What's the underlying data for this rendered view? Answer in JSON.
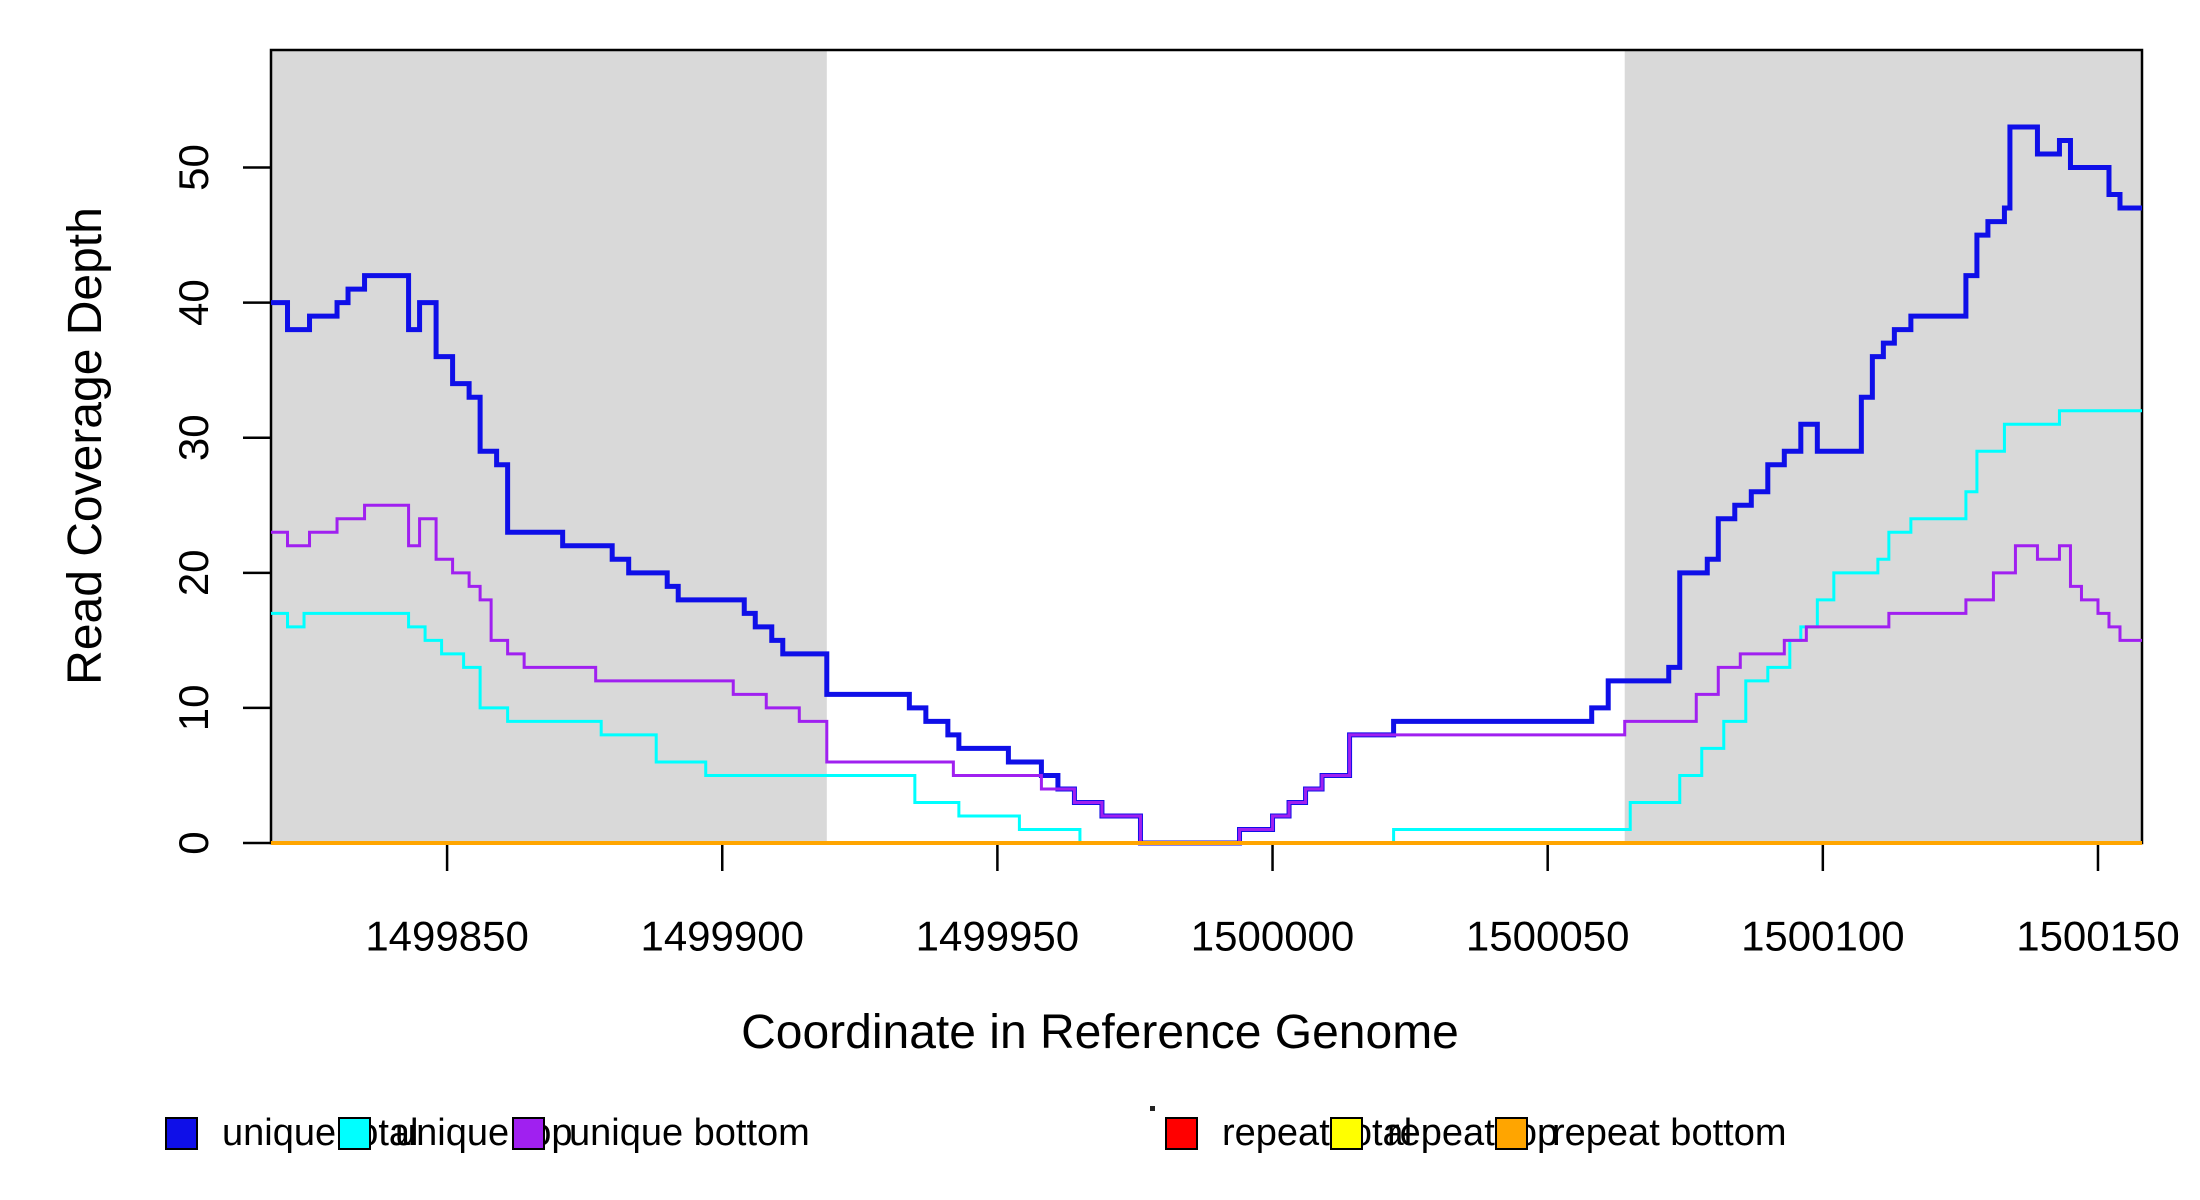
{
  "figure": {
    "background": "#FFFFFF",
    "box_color": "#000000",
    "tick_color": "#000000",
    "text_color": "#000000"
  },
  "chart_data": {
    "type": "line",
    "step": true,
    "title": "",
    "xlabel": "Coordinate in Reference Genome",
    "ylabel": "Read Coverage Depth",
    "xlim": [
      1499818,
      1500158
    ],
    "ylim": [
      0,
      58.7
    ],
    "x_ticks": [
      "1499850",
      "1499900",
      "1499950",
      "1500000",
      "1500050",
      "1500100",
      "1500150"
    ],
    "y_ticks": [
      "0",
      "10",
      "20",
      "30",
      "40",
      "50"
    ],
    "grid": false,
    "legend_position": "bottom-horizontal",
    "shade_color": "#D9D9D9",
    "shaded_regions": [
      {
        "from": 1499818,
        "to": 1499919
      },
      {
        "from": 1500064,
        "to": 1500158
      }
    ],
    "series": [
      {
        "name": "unique total",
        "color": "#0F0FE8",
        "line_width": 5,
        "points": [
          [
            1499818,
            40
          ],
          [
            1499821,
            38
          ],
          [
            1499825,
            39
          ],
          [
            1499830,
            40
          ],
          [
            1499832,
            41
          ],
          [
            1499835,
            42
          ],
          [
            1499843,
            38
          ],
          [
            1499845,
            40
          ],
          [
            1499848,
            36
          ],
          [
            1499851,
            34
          ],
          [
            1499854,
            33
          ],
          [
            1499856,
            29
          ],
          [
            1499859,
            28
          ],
          [
            1499861,
            23
          ],
          [
            1499871,
            22
          ],
          [
            1499880,
            21
          ],
          [
            1499883,
            20
          ],
          [
            1499890,
            19
          ],
          [
            1499892,
            18
          ],
          [
            1499904,
            17
          ],
          [
            1499906,
            16
          ],
          [
            1499909,
            15
          ],
          [
            1499911,
            14
          ],
          [
            1499919,
            11
          ],
          [
            1499934,
            10
          ],
          [
            1499937,
            9
          ],
          [
            1499941,
            8
          ],
          [
            1499943,
            7
          ],
          [
            1499952,
            6
          ],
          [
            1499958,
            5
          ],
          [
            1499961,
            4
          ],
          [
            1499964,
            3
          ],
          [
            1499969,
            2
          ],
          [
            1499976,
            0
          ],
          [
            1499994,
            1
          ],
          [
            1500000,
            2
          ],
          [
            1500003,
            3
          ],
          [
            1500006,
            4
          ],
          [
            1500009,
            5
          ],
          [
            1500014,
            8
          ],
          [
            1500022,
            9
          ],
          [
            1500058,
            10
          ],
          [
            1500061,
            12
          ],
          [
            1500072,
            13
          ],
          [
            1500074,
            20
          ],
          [
            1500079,
            21
          ],
          [
            1500081,
            24
          ],
          [
            1500084,
            25
          ],
          [
            1500087,
            26
          ],
          [
            1500090,
            28
          ],
          [
            1500093,
            29
          ],
          [
            1500096,
            31
          ],
          [
            1500099,
            29
          ],
          [
            1500107,
            33
          ],
          [
            1500109,
            36
          ],
          [
            1500111,
            37
          ],
          [
            1500113,
            38
          ],
          [
            1500116,
            39
          ],
          [
            1500126,
            42
          ],
          [
            1500128,
            45
          ],
          [
            1500130,
            46
          ],
          [
            1500133,
            47
          ],
          [
            1500134,
            53
          ],
          [
            1500139,
            51
          ],
          [
            1500143,
            52
          ],
          [
            1500145,
            50
          ],
          [
            1500152,
            48
          ],
          [
            1500154,
            47
          ],
          [
            1500158,
            47
          ]
        ]
      },
      {
        "name": "unique top",
        "color": "#00FFFF",
        "line_width": 3,
        "points": [
          [
            1499818,
            17
          ],
          [
            1499821,
            16
          ],
          [
            1499824,
            17
          ],
          [
            1499843,
            16
          ],
          [
            1499846,
            15
          ],
          [
            1499849,
            14
          ],
          [
            1499853,
            13
          ],
          [
            1499856,
            10
          ],
          [
            1499861,
            9
          ],
          [
            1499878,
            8
          ],
          [
            1499888,
            6
          ],
          [
            1499897,
            5
          ],
          [
            1499935,
            3
          ],
          [
            1499943,
            2
          ],
          [
            1499954,
            1
          ],
          [
            1499965,
            0
          ],
          [
            1500022,
            1
          ],
          [
            1500065,
            3
          ],
          [
            1500074,
            5
          ],
          [
            1500078,
            7
          ],
          [
            1500082,
            9
          ],
          [
            1500086,
            12
          ],
          [
            1500090,
            13
          ],
          [
            1500094,
            15
          ],
          [
            1500096,
            16
          ],
          [
            1500099,
            18
          ],
          [
            1500102,
            20
          ],
          [
            1500110,
            21
          ],
          [
            1500112,
            23
          ],
          [
            1500116,
            24
          ],
          [
            1500126,
            26
          ],
          [
            1500128,
            29
          ],
          [
            1500133,
            31
          ],
          [
            1500143,
            32
          ],
          [
            1500158,
            32
          ]
        ]
      },
      {
        "name": "unique bottom",
        "color": "#A020F0",
        "line_width": 3,
        "points": [
          [
            1499818,
            23
          ],
          [
            1499821,
            22
          ],
          [
            1499825,
            23
          ],
          [
            1499830,
            24
          ],
          [
            1499835,
            25
          ],
          [
            1499843,
            22
          ],
          [
            1499845,
            24
          ],
          [
            1499848,
            21
          ],
          [
            1499851,
            20
          ],
          [
            1499854,
            19
          ],
          [
            1499856,
            18
          ],
          [
            1499858,
            15
          ],
          [
            1499861,
            14
          ],
          [
            1499864,
            13
          ],
          [
            1499877,
            12
          ],
          [
            1499902,
            11
          ],
          [
            1499908,
            10
          ],
          [
            1499914,
            9
          ],
          [
            1499919,
            6
          ],
          [
            1499942,
            5
          ],
          [
            1499958,
            4
          ],
          [
            1499964,
            3
          ],
          [
            1499969,
            2
          ],
          [
            1499976,
            0
          ],
          [
            1499994,
            1
          ],
          [
            1500000,
            2
          ],
          [
            1500003,
            3
          ],
          [
            1500006,
            4
          ],
          [
            1500009,
            5
          ],
          [
            1500014,
            8
          ],
          [
            1500064,
            9
          ],
          [
            1500077,
            11
          ],
          [
            1500081,
            13
          ],
          [
            1500085,
            14
          ],
          [
            1500093,
            15
          ],
          [
            1500097,
            16
          ],
          [
            1500112,
            17
          ],
          [
            1500126,
            18
          ],
          [
            1500131,
            20
          ],
          [
            1500135,
            22
          ],
          [
            1500139,
            21
          ],
          [
            1500143,
            22
          ],
          [
            1500145,
            19
          ],
          [
            1500147,
            18
          ],
          [
            1500150,
            17
          ],
          [
            1500152,
            16
          ],
          [
            1500154,
            15
          ],
          [
            1500158,
            15
          ]
        ]
      },
      {
        "name": "repeat total",
        "color": "#FF0000",
        "line_width": 3,
        "points": [
          [
            1499818,
            0
          ],
          [
            1500158,
            0
          ]
        ]
      },
      {
        "name": "repeat top",
        "color": "#FFFF00",
        "line_width": 3,
        "points": [
          [
            1499818,
            0
          ],
          [
            1500158,
            0
          ]
        ]
      },
      {
        "name": "repeat bottom",
        "color": "#FFA500",
        "line_width": 4,
        "points": [
          [
            1499818,
            0
          ],
          [
            1500158,
            0
          ]
        ]
      }
    ]
  },
  "legend": {
    "items": [
      {
        "label": "unique total",
        "color": "#0F0FE8"
      },
      {
        "label": "unique top",
        "color": "#00FFFF"
      },
      {
        "label": "unique bottom",
        "color": "#A020F0"
      },
      {
        "label": "repeat total",
        "color": "#FF0000"
      },
      {
        "label": "repeat top",
        "color": "#FFFF00"
      },
      {
        "label": "repeat bottom",
        "color": "#FFA500"
      }
    ]
  }
}
